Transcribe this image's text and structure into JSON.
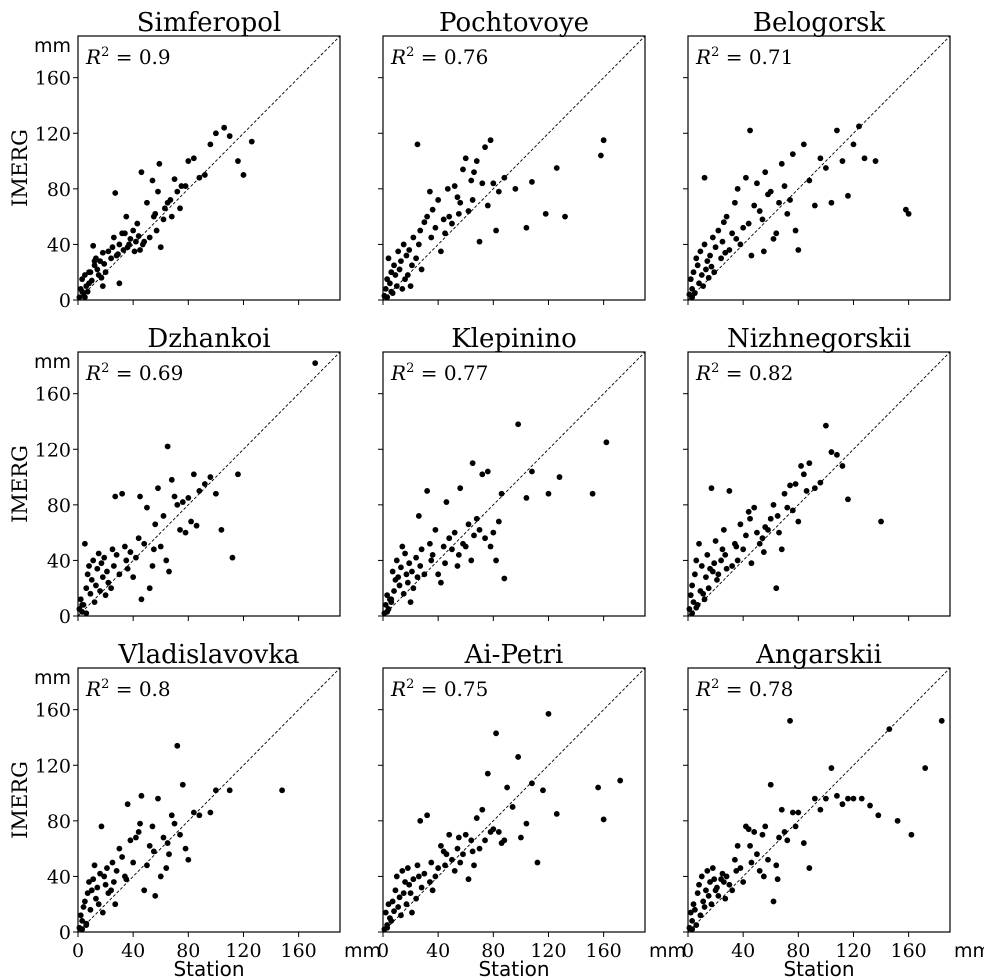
{
  "labels": {
    "x_axis": "Station",
    "y_axis": "IMERG",
    "unit": "mm",
    "r2_symbol": "R",
    "r2_exp": "2",
    "r2_eq": " = "
  },
  "chart_data": [
    {
      "type": "scatter",
      "title": "Simferopol",
      "r2": "0.9",
      "xlim": [
        0,
        190
      ],
      "ylim": [
        0,
        190
      ],
      "xticks": [
        0,
        40,
        80,
        120,
        160
      ],
      "yticks": [
        0,
        40,
        80,
        120,
        160
      ],
      "x": [
        1,
        2,
        3,
        4,
        5,
        6,
        7,
        8,
        9,
        10,
        11,
        12,
        13,
        14,
        15,
        16,
        17,
        18,
        19,
        20,
        22,
        24,
        25,
        26,
        27,
        28,
        29,
        30,
        32,
        33,
        34,
        35,
        36,
        37,
        38,
        40,
        41,
        42,
        43,
        44,
        45,
        46,
        47,
        48,
        50,
        52,
        54,
        55,
        56,
        57,
        58,
        59,
        60,
        62,
        63,
        65,
        67,
        68,
        70,
        72,
        74,
        75,
        78,
        80,
        84,
        88,
        92,
        96,
        100,
        106,
        110,
        116,
        120,
        126,
        3,
        5,
        8,
        12,
        18,
        30
      ],
      "y": [
        2,
        8,
        15,
        5,
        18,
        10,
        6,
        12,
        20,
        14,
        39,
        25,
        30,
        22,
        18,
        28,
        16,
        34,
        26,
        20,
        35,
        30,
        38,
        45,
        77,
        32,
        33,
        40,
        48,
        36,
        48,
        60,
        38,
        40,
        44,
        50,
        35,
        42,
        55,
        46,
        36,
        92,
        40,
        42,
        70,
        45,
        86,
        60,
        62,
        50,
        78,
        98,
        38,
        58,
        66,
        70,
        72,
        60,
        87,
        78,
        66,
        82,
        82,
        100,
        102,
        88,
        90,
        112,
        120,
        124,
        118,
        100,
        90,
        114,
        6,
        2,
        20,
        28,
        10,
        12
      ]
    },
    {
      "type": "scatter",
      "title": "Pochtovoye",
      "r2": "0.76",
      "xlim": [
        0,
        190
      ],
      "ylim": [
        0,
        190
      ],
      "xticks": [
        0,
        40,
        80,
        120,
        160
      ],
      "yticks": [
        0,
        40,
        80,
        120,
        160
      ],
      "x": [
        1,
        2,
        3,
        4,
        5,
        6,
        7,
        8,
        9,
        10,
        11,
        12,
        13,
        14,
        15,
        16,
        17,
        18,
        19,
        20,
        21,
        22,
        24,
        25,
        26,
        27,
        28,
        30,
        32,
        34,
        35,
        36,
        38,
        40,
        42,
        44,
        45,
        47,
        48,
        50,
        52,
        54,
        55,
        56,
        58,
        60,
        62,
        64,
        65,
        66,
        68,
        70,
        72,
        74,
        76,
        78,
        80,
        82,
        84,
        88,
        96,
        104,
        108,
        118,
        126,
        132,
        158,
        160,
        3,
        6
      ],
      "y": [
        3,
        8,
        15,
        30,
        12,
        20,
        5,
        25,
        18,
        10,
        35,
        22,
        28,
        8,
        40,
        15,
        32,
        18,
        36,
        10,
        25,
        45,
        30,
        112,
        40,
        50,
        22,
        56,
        60,
        78,
        45,
        65,
        52,
        72,
        35,
        58,
        48,
        80,
        60,
        55,
        82,
        74,
        62,
        70,
        94,
        102,
        64,
        86,
        72,
        92,
        100,
        42,
        84,
        110,
        68,
        115,
        84,
        50,
        78,
        88,
        80,
        52,
        85,
        62,
        95,
        60,
        104,
        115,
        2,
        6
      ]
    },
    {
      "type": "scatter",
      "title": "Belogorsk",
      "r2": "0.71",
      "xlim": [
        0,
        190
      ],
      "ylim": [
        0,
        190
      ],
      "xticks": [
        0,
        40,
        80,
        120,
        160
      ],
      "yticks": [
        0,
        40,
        80,
        120,
        160
      ],
      "x": [
        1,
        2,
        3,
        4,
        5,
        6,
        7,
        8,
        9,
        10,
        11,
        12,
        13,
        14,
        15,
        16,
        17,
        18,
        19,
        20,
        22,
        24,
        25,
        26,
        27,
        28,
        30,
        32,
        34,
        35,
        36,
        38,
        40,
        42,
        44,
        45,
        46,
        48,
        50,
        52,
        54,
        55,
        56,
        58,
        60,
        62,
        64,
        66,
        68,
        70,
        72,
        74,
        76,
        78,
        80,
        84,
        88,
        92,
        96,
        100,
        104,
        108,
        112,
        116,
        120,
        124,
        128,
        136,
        158,
        160,
        3,
        12
      ],
      "y": [
        4,
        15,
        8,
        20,
        5,
        30,
        25,
        12,
        35,
        18,
        10,
        40,
        22,
        28,
        16,
        32,
        24,
        45,
        20,
        38,
        50,
        30,
        42,
        56,
        34,
        60,
        36,
        48,
        70,
        44,
        80,
        40,
        52,
        88,
        55,
        122,
        32,
        68,
        84,
        64,
        58,
        35,
        92,
        76,
        78,
        44,
        48,
        70,
        98,
        82,
        62,
        72,
        105,
        50,
        36,
        112,
        86,
        68,
        102,
        95,
        70,
        122,
        100,
        75,
        112,
        125,
        102,
        100,
        65,
        62,
        2,
        88
      ]
    },
    {
      "type": "scatter",
      "title": "Dzhankoi",
      "r2": "0.69",
      "xlim": [
        0,
        190
      ],
      "ylim": [
        0,
        190
      ],
      "xticks": [
        0,
        40,
        80,
        120,
        160
      ],
      "yticks": [
        0,
        40,
        80,
        120,
        160
      ],
      "x": [
        1,
        2,
        3,
        4,
        5,
        6,
        7,
        8,
        9,
        10,
        11,
        12,
        13,
        14,
        15,
        16,
        17,
        18,
        19,
        20,
        21,
        22,
        24,
        25,
        26,
        27,
        28,
        30,
        32,
        34,
        35,
        36,
        38,
        40,
        42,
        44,
        45,
        46,
        48,
        50,
        52,
        54,
        55,
        56,
        58,
        60,
        62,
        64,
        65,
        66,
        68,
        70,
        72,
        74,
        76,
        78,
        80,
        82,
        84,
        86,
        88,
        92,
        96,
        100,
        104,
        112,
        116,
        172,
        3,
        6
      ],
      "y": [
        5,
        12,
        3,
        8,
        52,
        20,
        30,
        36,
        16,
        26,
        40,
        10,
        22,
        34,
        45,
        18,
        38,
        28,
        42,
        15,
        32,
        24,
        20,
        48,
        36,
        86,
        44,
        30,
        88,
        50,
        40,
        34,
        46,
        28,
        42,
        56,
        86,
        12,
        52,
        78,
        20,
        36,
        48,
        66,
        92,
        50,
        72,
        40,
        122,
        32,
        98,
        86,
        80,
        62,
        82,
        60,
        85,
        68,
        102,
        65,
        90,
        95,
        100,
        88,
        62,
        42,
        102,
        182,
        8,
        2
      ]
    },
    {
      "type": "scatter",
      "title": "Klepinino",
      "r2": "0.77",
      "xlim": [
        0,
        190
      ],
      "ylim": [
        0,
        190
      ],
      "xticks": [
        0,
        40,
        80,
        120,
        160
      ],
      "yticks": [
        0,
        40,
        80,
        120,
        160
      ],
      "x": [
        1,
        2,
        3,
        4,
        5,
        6,
        7,
        8,
        9,
        10,
        11,
        12,
        13,
        14,
        15,
        16,
        17,
        18,
        19,
        20,
        21,
        22,
        24,
        25,
        26,
        27,
        28,
        30,
        32,
        34,
        35,
        36,
        38,
        40,
        42,
        44,
        45,
        46,
        48,
        50,
        52,
        54,
        55,
        56,
        58,
        60,
        62,
        64,
        65,
        66,
        68,
        70,
        72,
        74,
        76,
        78,
        80,
        82,
        84,
        86,
        88,
        98,
        104,
        108,
        120,
        128,
        152,
        162,
        3,
        6
      ],
      "y": [
        2,
        8,
        15,
        5,
        12,
        10,
        32,
        18,
        26,
        40,
        28,
        22,
        35,
        50,
        16,
        45,
        30,
        24,
        38,
        10,
        32,
        20,
        42,
        28,
        72,
        36,
        48,
        30,
        90,
        52,
        40,
        44,
        62,
        30,
        24,
        50,
        38,
        82,
        56,
        48,
        60,
        36,
        44,
        92,
        52,
        50,
        66,
        40,
        110,
        58,
        70,
        62,
        102,
        56,
        104,
        50,
        60,
        40,
        68,
        88,
        27,
        138,
        85,
        104,
        88,
        100,
        88,
        125,
        3,
        12
      ]
    },
    {
      "type": "scatter",
      "title": "Nizhnegorskii",
      "r2": "0.82",
      "xlim": [
        0,
        190
      ],
      "ylim": [
        0,
        190
      ],
      "xticks": [
        0,
        40,
        80,
        120,
        160
      ],
      "yticks": [
        0,
        40,
        80,
        120,
        160
      ],
      "x": [
        1,
        2,
        3,
        4,
        5,
        6,
        7,
        8,
        9,
        10,
        11,
        12,
        13,
        14,
        15,
        16,
        17,
        18,
        19,
        20,
        21,
        22,
        24,
        25,
        26,
        27,
        28,
        30,
        32,
        34,
        35,
        36,
        38,
        40,
        42,
        44,
        45,
        46,
        48,
        50,
        52,
        54,
        55,
        56,
        58,
        60,
        62,
        64,
        65,
        66,
        68,
        70,
        72,
        74,
        76,
        78,
        80,
        82,
        84,
        86,
        88,
        92,
        96,
        100,
        104,
        108,
        112,
        116,
        140,
        3,
        6
      ],
      "y": [
        5,
        15,
        22,
        10,
        30,
        40,
        8,
        52,
        18,
        36,
        16,
        12,
        28,
        44,
        20,
        34,
        92,
        32,
        38,
        54,
        26,
        30,
        40,
        48,
        62,
        44,
        34,
        90,
        36,
        52,
        50,
        40,
        66,
        48,
        58,
        75,
        70,
        38,
        78,
        60,
        52,
        56,
        46,
        64,
        62,
        70,
        80,
        20,
        72,
        60,
        48,
        88,
        78,
        94,
        76,
        95,
        68,
        108,
        102,
        90,
        110,
        92,
        96,
        137,
        118,
        116,
        108,
        84,
        68,
        2,
        6
      ]
    },
    {
      "type": "scatter",
      "title": "Vladislavovka",
      "r2": "0.8",
      "xlim": [
        0,
        190
      ],
      "ylim": [
        0,
        190
      ],
      "xticks": [
        0,
        40,
        80,
        120,
        160
      ],
      "yticks": [
        0,
        40,
        80,
        120,
        160
      ],
      "x": [
        1,
        2,
        3,
        4,
        5,
        6,
        7,
        8,
        9,
        10,
        11,
        12,
        13,
        14,
        15,
        16,
        17,
        18,
        19,
        20,
        21,
        22,
        24,
        25,
        26,
        27,
        28,
        30,
        32,
        34,
        35,
        36,
        38,
        40,
        42,
        44,
        45,
        46,
        48,
        50,
        52,
        54,
        55,
        56,
        58,
        60,
        62,
        64,
        65,
        66,
        68,
        70,
        72,
        74,
        76,
        78,
        80,
        84,
        88,
        96,
        100,
        110,
        148,
        3,
        6
      ],
      "y": [
        3,
        12,
        8,
        18,
        22,
        5,
        28,
        36,
        16,
        30,
        38,
        48,
        24,
        32,
        20,
        42,
        76,
        14,
        40,
        34,
        46,
        28,
        30,
        50,
        36,
        20,
        44,
        60,
        54,
        40,
        38,
        92,
        66,
        50,
        68,
        72,
        78,
        98,
        30,
        48,
        62,
        76,
        58,
        26,
        96,
        40,
        68,
        46,
        64,
        56,
        84,
        78,
        134,
        70,
        106,
        60,
        52,
        86,
        84,
        86,
        102,
        102,
        102,
        2,
        6
      ]
    },
    {
      "type": "scatter",
      "title": "Ai-Petri",
      "r2": "0.75",
      "xlim": [
        0,
        190
      ],
      "ylim": [
        0,
        190
      ],
      "xticks": [
        0,
        40,
        80,
        120,
        160
      ],
      "yticks": [
        0,
        40,
        80,
        120,
        160
      ],
      "x": [
        1,
        2,
        3,
        4,
        5,
        6,
        7,
        8,
        9,
        10,
        11,
        12,
        13,
        14,
        15,
        16,
        17,
        18,
        19,
        20,
        21,
        22,
        24,
        25,
        26,
        27,
        28,
        30,
        32,
        34,
        35,
        36,
        38,
        40,
        42,
        44,
        45,
        46,
        48,
        50,
        52,
        54,
        55,
        56,
        58,
        60,
        62,
        64,
        65,
        66,
        68,
        70,
        72,
        74,
        76,
        78,
        80,
        82,
        84,
        86,
        88,
        90,
        94,
        98,
        100,
        104,
        108,
        112,
        116,
        120,
        126,
        156,
        160,
        172,
        3
      ],
      "y": [
        2,
        14,
        5,
        20,
        10,
        8,
        22,
        15,
        30,
        40,
        18,
        25,
        12,
        44,
        28,
        36,
        20,
        46,
        34,
        28,
        14,
        38,
        24,
        48,
        40,
        80,
        32,
        42,
        84,
        36,
        50,
        30,
        40,
        46,
        62,
        58,
        48,
        56,
        70,
        52,
        44,
        60,
        68,
        50,
        56,
        70,
        38,
        66,
        58,
        48,
        82,
        60,
        88,
        66,
        114,
        72,
        74,
        143,
        72,
        64,
        66,
        104,
        90,
        126,
        68,
        78,
        107,
        50,
        102,
        157,
        85,
        104,
        81,
        109,
        3
      ]
    },
    {
      "type": "scatter",
      "title": "Angarskii",
      "r2": "0.78",
      "xlim": [
        0,
        190
      ],
      "ylim": [
        0,
        190
      ],
      "xticks": [
        0,
        40,
        80,
        120,
        160
      ],
      "yticks": [
        0,
        40,
        80,
        120,
        160
      ],
      "x": [
        1,
        2,
        3,
        4,
        5,
        6,
        7,
        8,
        9,
        10,
        11,
        12,
        13,
        14,
        15,
        16,
        17,
        18,
        19,
        20,
        21,
        22,
        24,
        25,
        26,
        27,
        28,
        30,
        32,
        34,
        35,
        36,
        38,
        40,
        42,
        44,
        45,
        46,
        48,
        50,
        52,
        54,
        55,
        56,
        58,
        60,
        62,
        64,
        65,
        66,
        68,
        70,
        72,
        74,
        76,
        78,
        80,
        84,
        88,
        92,
        96,
        100,
        104,
        108,
        112,
        116,
        120,
        126,
        132,
        138,
        146,
        152,
        162,
        172,
        184,
        3
      ],
      "y": [
        3,
        14,
        8,
        20,
        16,
        5,
        28,
        34,
        12,
        40,
        22,
        18,
        30,
        44,
        26,
        36,
        20,
        46,
        38,
        30,
        32,
        26,
        38,
        42,
        36,
        24,
        40,
        34,
        30,
        52,
        44,
        62,
        46,
        36,
        76,
        74,
        62,
        50,
        72,
        56,
        44,
        70,
        40,
        76,
        52,
        106,
        22,
        48,
        38,
        68,
        88,
        72,
        66,
        152,
        86,
        76,
        86,
        64,
        46,
        96,
        88,
        96,
        118,
        98,
        92,
        96,
        96,
        96,
        91,
        84,
        146,
        80,
        70,
        118,
        152,
        2
      ]
    }
  ]
}
